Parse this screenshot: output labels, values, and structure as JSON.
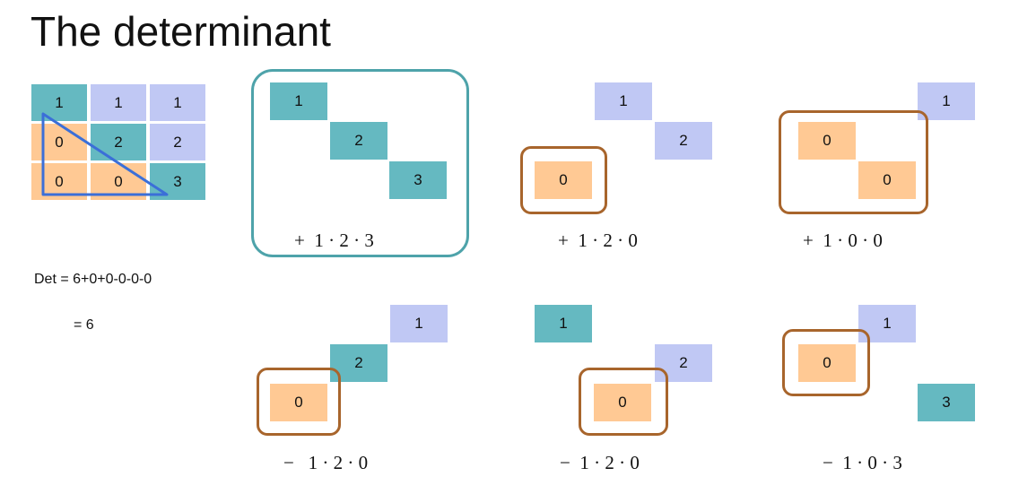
{
  "title": "The determinant",
  "matrix": [
    [
      "1",
      "1",
      "1"
    ],
    [
      "0",
      "2",
      "2"
    ],
    [
      "0",
      "0",
      "3"
    ]
  ],
  "det_line1": "Det = 6+0+0-0-0-0",
  "det_line2": "= 6",
  "colors": {
    "teal": "#65b9c1",
    "lavender": "#c0c8f4",
    "peach": "#ffc994",
    "teal_border": "#4ea3aa",
    "brown_border": "#a8652c",
    "triangle": "#3b6fd8"
  },
  "terms": [
    {
      "cells": [
        "1",
        "2",
        "3"
      ],
      "formula": "+  1 · 2 · 3"
    },
    {
      "cells": [
        "1",
        "2",
        "0"
      ],
      "formula": "+  1 · 2 · 0"
    },
    {
      "cells": [
        "1",
        "0",
        "0"
      ],
      "formula": "+  1 · 0 · 0"
    },
    {
      "cells": [
        "1",
        "2",
        "0"
      ],
      "formula": "−   1 · 2 · 0"
    },
    {
      "cells": [
        "1",
        "2",
        "0"
      ],
      "formula": "−  1 · 2 · 0"
    },
    {
      "cells": [
        "1",
        "0",
        "3"
      ],
      "formula": "−  1 · 0 · 3"
    }
  ]
}
